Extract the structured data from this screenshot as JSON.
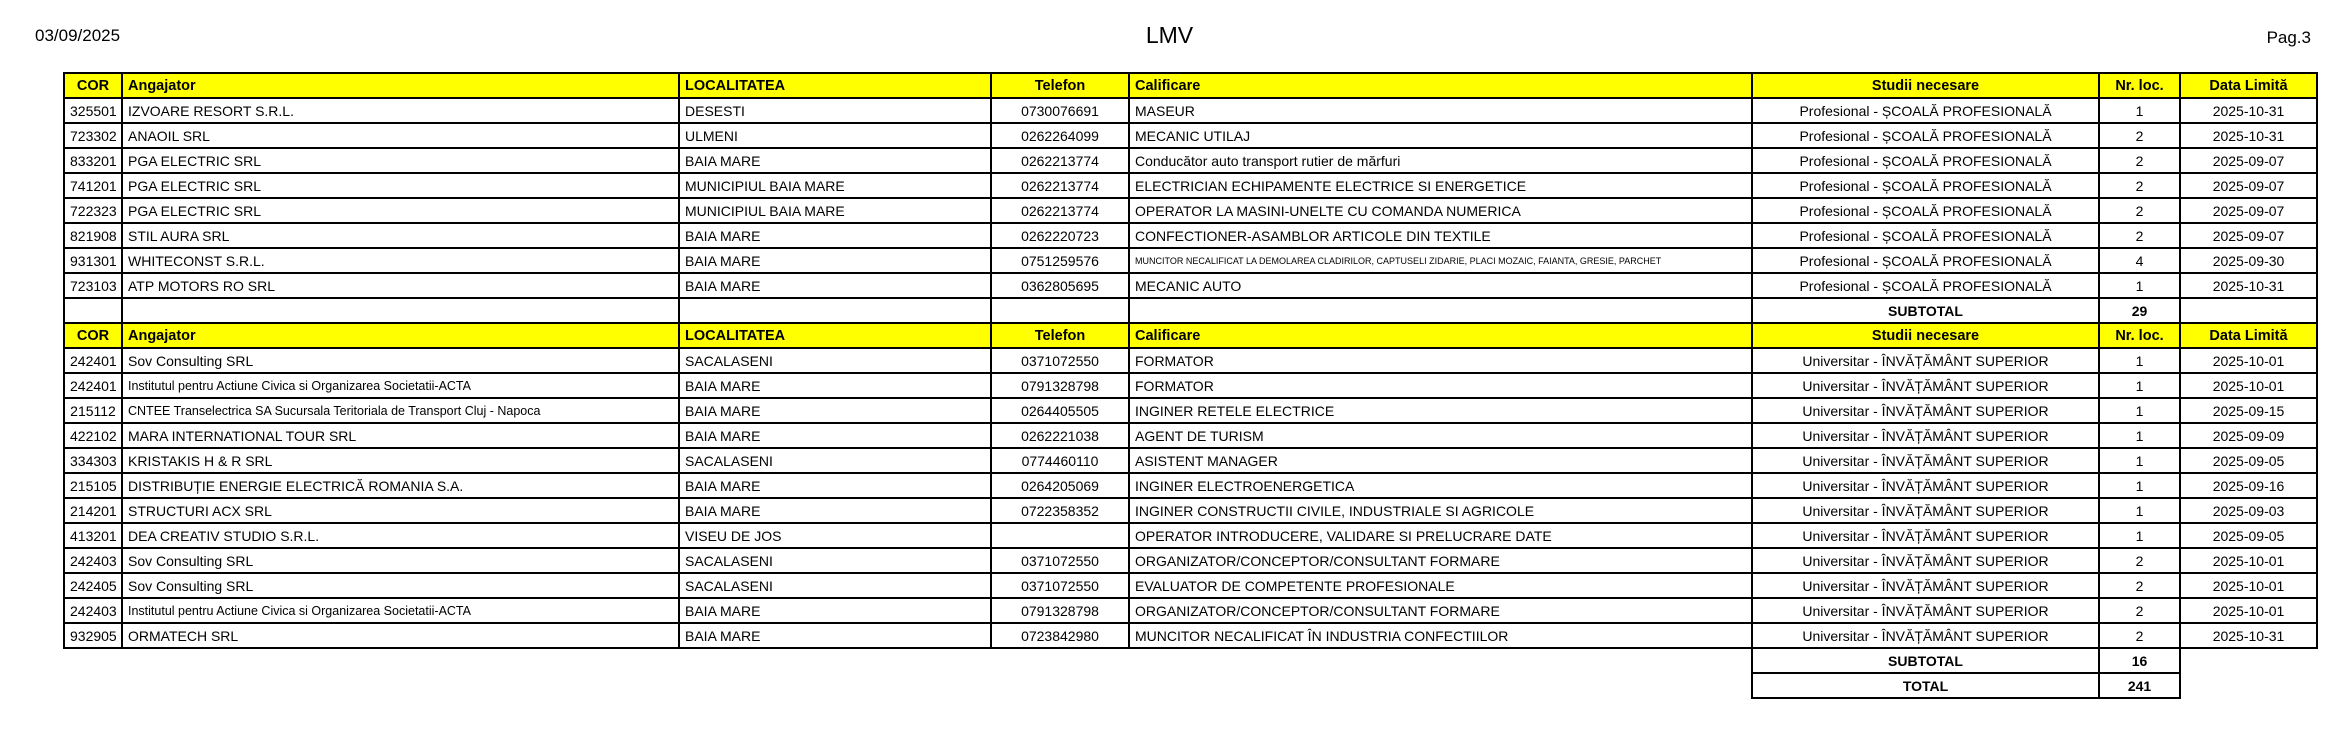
{
  "header": {
    "date": "03/09/2025",
    "title": "LMV",
    "page": "Pag.3"
  },
  "colors": {
    "header_bg": "#FFFF00",
    "border": "#000000",
    "text": "#000000"
  },
  "columns": [
    "COR",
    "Angajator",
    "LOCALITATEA",
    "Telefon",
    "Calificare",
    "Studii necesare",
    "Nr. loc.",
    "Data Limită"
  ],
  "sections": [
    {
      "rows": [
        {
          "cor": "325501",
          "angajator": "IZVOARE RESORT S.R.L.",
          "localitatea": "DESESTI",
          "telefon": "0730076691",
          "calificare": "MASEUR",
          "studii_necesare": "Profesional - ȘCOALĂ PROFESIONALĂ",
          "nr_loc": "1",
          "data_limita": "2025-10-31"
        },
        {
          "cor": "723302",
          "angajator": "ANAOIL SRL",
          "localitatea": "ULMENI",
          "telefon": "0262264099",
          "calificare": "MECANIC UTILAJ",
          "studii_necesare": "Profesional - ȘCOALĂ PROFESIONALĂ",
          "nr_loc": "2",
          "data_limita": "2025-10-31"
        },
        {
          "cor": "833201",
          "angajator": "PGA ELECTRIC SRL",
          "localitatea": "BAIA MARE",
          "telefon": "0262213774",
          "calificare": "Conducător auto transport rutier de mărfuri",
          "studii_necesare": "Profesional - ȘCOALĂ PROFESIONALĂ",
          "nr_loc": "2",
          "data_limita": "2025-09-07"
        },
        {
          "cor": "741201",
          "angajator": "PGA ELECTRIC SRL",
          "localitatea": "MUNICIPIUL BAIA MARE",
          "telefon": "0262213774",
          "calificare": "ELECTRICIAN ECHIPAMENTE ELECTRICE SI ENERGETICE",
          "studii_necesare": "Profesional - ȘCOALĂ PROFESIONALĂ",
          "nr_loc": "2",
          "data_limita": "2025-09-07"
        },
        {
          "cor": "722323",
          "angajator": "PGA ELECTRIC SRL",
          "localitatea": "MUNICIPIUL BAIA MARE",
          "telefon": "0262213774",
          "calificare": "OPERATOR LA MASINI-UNELTE CU COMANDA NUMERICA",
          "studii_necesare": "Profesional - ȘCOALĂ PROFESIONALĂ",
          "nr_loc": "2",
          "data_limita": "2025-09-07"
        },
        {
          "cor": "821908",
          "angajator": "STIL AURA SRL",
          "localitatea": "BAIA MARE",
          "telefon": "0262220723",
          "calificare": "CONFECTIONER-ASAMBLOR ARTICOLE DIN TEXTILE",
          "studii_necesare": "Profesional - ȘCOALĂ PROFESIONALĂ",
          "nr_loc": "2",
          "data_limita": "2025-09-07"
        },
        {
          "cor": "931301",
          "angajator": "WHITECONST S.R.L.",
          "localitatea": "BAIA MARE",
          "telefon": "0751259576",
          "calificare": "MUNCITOR NECALIFICAT LA DEMOLAREA CLADIRILOR, CAPTUSELI ZIDARIE, PLACI MOZAIC, FAIANTA, GRESIE, PARCHET",
          "studii_necesare": "Profesional - ȘCOALĂ PROFESIONALĂ",
          "nr_loc": "4",
          "data_limita": "2025-09-30"
        },
        {
          "cor": "723103",
          "angajator": "ATP MOTORS RO SRL",
          "localitatea": "BAIA MARE",
          "telefon": "0362805695",
          "calificare": "MECANIC AUTO",
          "studii_necesare": "Profesional - ȘCOALĂ PROFESIONALĂ",
          "nr_loc": "1",
          "data_limita": "2025-10-31"
        }
      ],
      "subtotal": {
        "label": "SUBTOTAL",
        "value": "29"
      }
    },
    {
      "rows": [
        {
          "cor": "242401",
          "angajator": "Sov Consulting SRL",
          "localitatea": "SACALASENI",
          "telefon": "0371072550",
          "calificare": "FORMATOR",
          "studii_necesare": "Universitar - ÎNVĂȚĂMÂNT SUPERIOR",
          "nr_loc": "1",
          "data_limita": "2025-10-01"
        },
        {
          "cor": "242401",
          "angajator": "Institutul pentru Actiune Civica si Organizarea Societatii-ACTA",
          "localitatea": "BAIA MARE",
          "telefon": "0791328798",
          "calificare": "FORMATOR",
          "studii_necesare": "Universitar - ÎNVĂȚĂMÂNT SUPERIOR",
          "nr_loc": "1",
          "data_limita": "2025-10-01"
        },
        {
          "cor": "215112",
          "angajator": "CNTEE Transelectrica SA Sucursala Teritoriala de Transport Cluj - Napoca",
          "localitatea": "BAIA MARE",
          "telefon": "0264405505",
          "calificare": "INGINER RETELE ELECTRICE",
          "studii_necesare": "Universitar - ÎNVĂȚĂMÂNT SUPERIOR",
          "nr_loc": "1",
          "data_limita": "2025-09-15"
        },
        {
          "cor": "422102",
          "angajator": "MARA INTERNATIONAL TOUR SRL",
          "localitatea": "BAIA MARE",
          "telefon": "0262221038",
          "calificare": "AGENT DE TURISM",
          "studii_necesare": "Universitar - ÎNVĂȚĂMÂNT SUPERIOR",
          "nr_loc": "1",
          "data_limita": "2025-09-09"
        },
        {
          "cor": "334303",
          "angajator": "KRISTAKIS H & R SRL",
          "localitatea": "SACALASENI",
          "telefon": "0774460110",
          "calificare": "ASISTENT MANAGER",
          "studii_necesare": "Universitar - ÎNVĂȚĂMÂNT SUPERIOR",
          "nr_loc": "1",
          "data_limita": "2025-09-05"
        },
        {
          "cor": "215105",
          "angajator": "DISTRIBUȚIE ENERGIE ELECTRICĂ ROMANIA S.A.",
          "localitatea": "BAIA MARE",
          "telefon": "0264205069",
          "calificare": "INGINER ELECTROENERGETICA",
          "studii_necesare": "Universitar - ÎNVĂȚĂMÂNT SUPERIOR",
          "nr_loc": "1",
          "data_limita": "2025-09-16"
        },
        {
          "cor": "214201",
          "angajator": "STRUCTURI ACX SRL",
          "localitatea": "BAIA MARE",
          "telefon": "0722358352",
          "calificare": "INGINER CONSTRUCTII CIVILE, INDUSTRIALE SI AGRICOLE",
          "studii_necesare": "Universitar - ÎNVĂȚĂMÂNT SUPERIOR",
          "nr_loc": "1",
          "data_limita": "2025-09-03"
        },
        {
          "cor": "413201",
          "angajator": "DEA CREATIV STUDIO S.R.L.",
          "localitatea": "VISEU DE JOS",
          "telefon": "",
          "calificare": "OPERATOR INTRODUCERE, VALIDARE SI PRELUCRARE DATE",
          "studii_necesare": "Universitar - ÎNVĂȚĂMÂNT SUPERIOR",
          "nr_loc": "1",
          "data_limita": "2025-09-05"
        },
        {
          "cor": "242403",
          "angajator": "Sov Consulting SRL",
          "localitatea": "SACALASENI",
          "telefon": "0371072550",
          "calificare": "ORGANIZATOR/CONCEPTOR/CONSULTANT FORMARE",
          "studii_necesare": "Universitar - ÎNVĂȚĂMÂNT SUPERIOR",
          "nr_loc": "2",
          "data_limita": "2025-10-01"
        },
        {
          "cor": "242405",
          "angajator": "Sov Consulting SRL",
          "localitatea": "SACALASENI",
          "telefon": "0371072550",
          "calificare": "EVALUATOR DE COMPETENTE PROFESIONALE",
          "studii_necesare": "Universitar - ÎNVĂȚĂMÂNT SUPERIOR",
          "nr_loc": "2",
          "data_limita": "2025-10-01"
        },
        {
          "cor": "242403",
          "angajator": "Institutul pentru Actiune Civica si Organizarea Societatii-ACTA",
          "localitatea": "BAIA MARE",
          "telefon": "0791328798",
          "calificare": "ORGANIZATOR/CONCEPTOR/CONSULTANT FORMARE",
          "studii_necesare": "Universitar - ÎNVĂȚĂMÂNT SUPERIOR",
          "nr_loc": "2",
          "data_limita": "2025-10-01"
        },
        {
          "cor": "932905",
          "angajator": "ORMATECH SRL",
          "localitatea": "BAIA MARE",
          "telefon": "0723842980",
          "calificare": "MUNCITOR NECALIFICAT ÎN INDUSTRIA CONFECTIILOR",
          "studii_necesare": "Universitar - ÎNVĂȚĂMÂNT SUPERIOR",
          "nr_loc": "2",
          "data_limita": "2025-10-31"
        }
      ],
      "subtotal": {
        "label": "SUBTOTAL",
        "value": "16"
      }
    }
  ],
  "total": {
    "label": "TOTAL",
    "value": "241"
  }
}
